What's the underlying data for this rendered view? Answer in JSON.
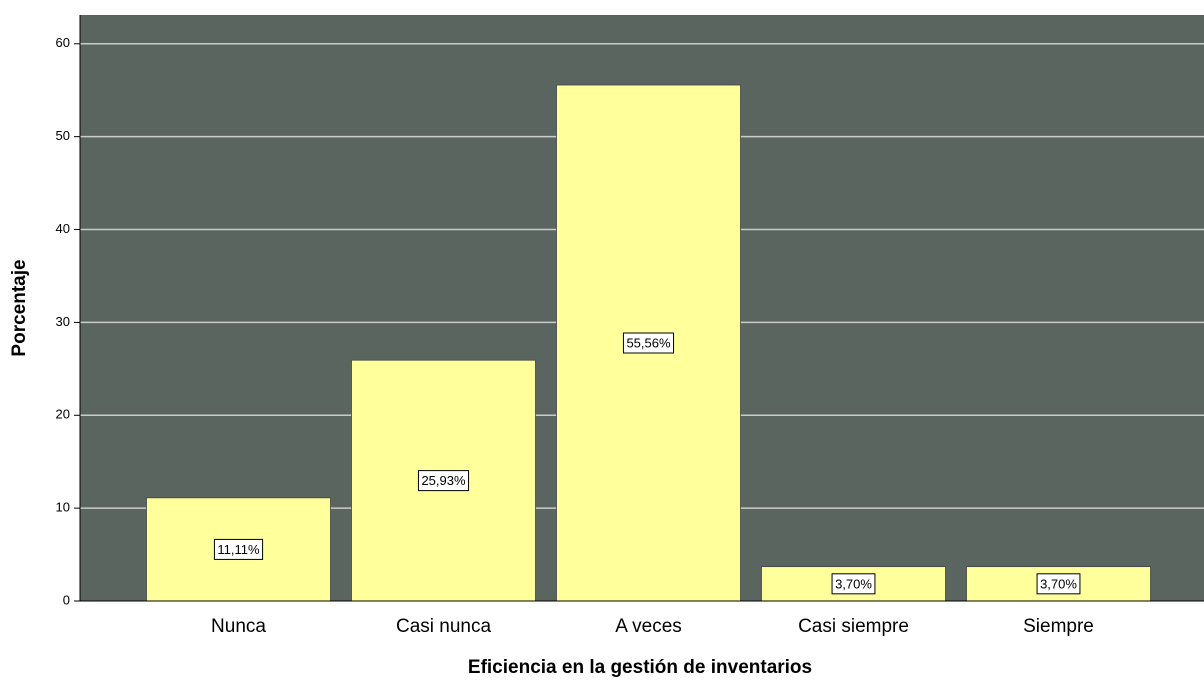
{
  "chart_data": {
    "type": "bar",
    "x_label": "Eficiencia en la gestión de inventarios",
    "y_label": "Porcentaje",
    "categories": [
      "Nunca",
      "Casi nunca",
      "A veces",
      "Casi siempre",
      "Siempre"
    ],
    "values": [
      11.11,
      25.93,
      55.56,
      3.7,
      3.7
    ],
    "value_labels": [
      "11,11%",
      "25,93%",
      "55,56%",
      "3,70%",
      "3,70%"
    ],
    "color": "#ffff9c",
    "ylim": [
      0,
      63.1
    ],
    "yticks": [
      0,
      10,
      20,
      30,
      40,
      50,
      60
    ],
    "grid": true
  }
}
